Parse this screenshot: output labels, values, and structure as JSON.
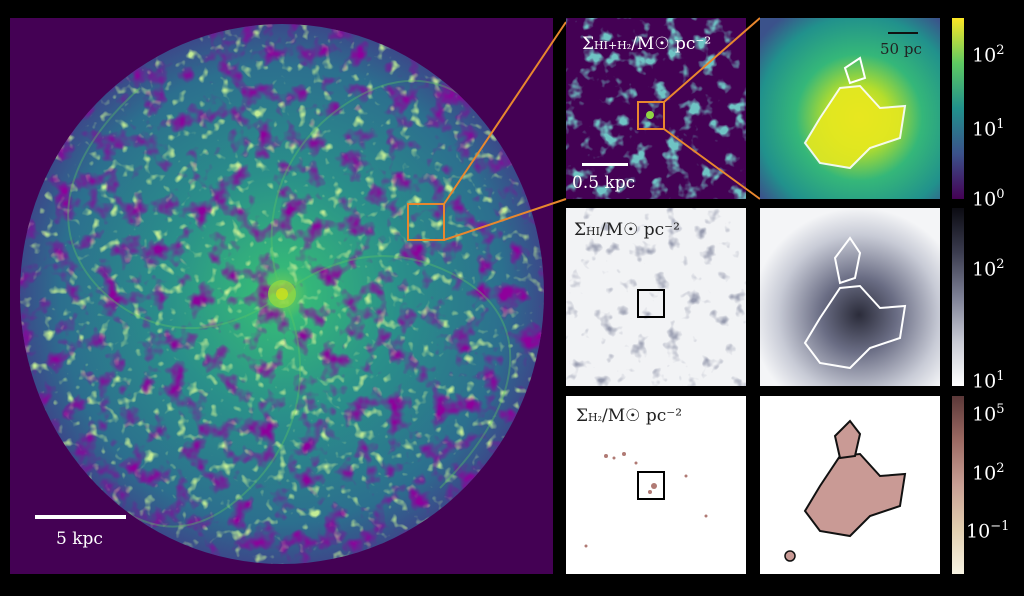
{
  "panels": {
    "main": {
      "scale_label": "5 kpc"
    },
    "top_zoom": {
      "quantity_label": "Σ",
      "quantity_sub": "HI+H₂",
      "unit": "/M☉ pc⁻²",
      "scale_label": "0.5 kpc"
    },
    "top_detail": {
      "scale_label": "50 pc"
    },
    "mid_zoom": {
      "quantity_label": "Σ",
      "quantity_sub": "HI",
      "unit": "/M☉ pc⁻²"
    },
    "bot_zoom": {
      "quantity_label": "Σ",
      "quantity_sub": "H₂",
      "unit": "/M☉ pc⁻²"
    }
  },
  "colorbars": {
    "top": {
      "colormap": "viridis",
      "ticks": [
        {
          "base": "10",
          "exp": "2"
        },
        {
          "base": "10",
          "exp": "1"
        },
        {
          "base": "10",
          "exp": "0"
        }
      ]
    },
    "mid": {
      "colormap": "bone_r",
      "ticks": [
        {
          "base": "10",
          "exp": "2"
        },
        {
          "base": "10",
          "exp": "1"
        }
      ]
    },
    "bot": {
      "colormap": "pink_r",
      "ticks": [
        {
          "base": "10",
          "exp": "5"
        },
        {
          "base": "10",
          "exp": "2"
        },
        {
          "base": "10",
          "exp": "−1"
        }
      ]
    }
  },
  "colors": {
    "background_purple": "#440154",
    "viridis_green": "#7ad151",
    "viridis_teal": "#21918c",
    "viridis_yellow": "#fde725",
    "zoom_box_orange": "#e8872e",
    "h2_brown": "#b07a74"
  }
}
